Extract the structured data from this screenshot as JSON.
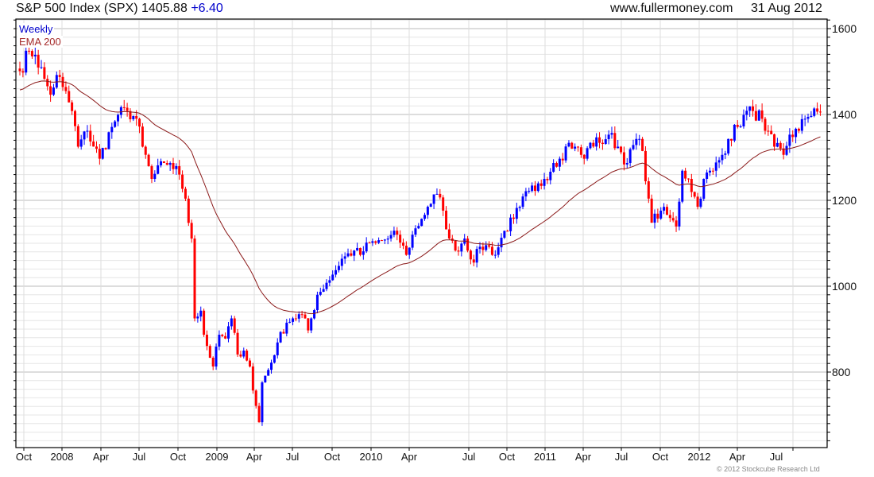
{
  "header": {
    "title": "S&P 500 Index (SPX) 1405.88",
    "change": "+6.40",
    "site": "www.fullermoney.com",
    "date": "31 Aug 2012"
  },
  "legend": {
    "frequency": "Weekly",
    "indicator": "EMA 200"
  },
  "copyright": "© 2012 Stockcube Research Ltd",
  "colors": {
    "up": "#0000ff",
    "down": "#ff0000",
    "ema": "#8b1a1a",
    "grid": "#dddddd"
  },
  "chart_data": {
    "type": "candlestick",
    "title": "S&P 500 Index (SPX)",
    "frequency": "weekly",
    "last_close": 1405.88,
    "ylim": [
      622,
      1622
    ],
    "y_ticks": [
      800,
      1000,
      1200,
      1400,
      1600
    ],
    "x_ticks": [
      "Oct",
      "2008",
      "Apr",
      "Jul",
      "Oct",
      "2009",
      "Apr",
      "Jul",
      "Oct",
      "2010",
      "Apr",
      "Jul",
      "Oct",
      "2011",
      "Apr",
      "Jul",
      "Oct",
      "2012",
      "Apr",
      "Jul"
    ],
    "ema_period_weeks": 40,
    "ema_start": 1455,
    "close_anchors_week_value": [
      [
        0,
        1501
      ],
      [
        3,
        1548
      ],
      [
        5,
        1539
      ],
      [
        8,
        1483
      ],
      [
        10,
        1446
      ],
      [
        12,
        1492
      ],
      [
        14,
        1464
      ],
      [
        17,
        1408
      ],
      [
        19,
        1325
      ],
      [
        22,
        1362
      ],
      [
        26,
        1297
      ],
      [
        30,
        1371
      ],
      [
        32,
        1399
      ],
      [
        35,
        1408
      ],
      [
        38,
        1390
      ],
      [
        40,
        1325
      ],
      [
        43,
        1250
      ],
      [
        47,
        1287
      ],
      [
        49,
        1287
      ],
      [
        52,
        1260
      ],
      [
        54,
        1204
      ],
      [
        56,
        1111
      ],
      [
        57,
        925
      ],
      [
        59,
        943
      ],
      [
        60,
        887
      ],
      [
        63,
        813
      ],
      [
        65,
        887
      ],
      [
        67,
        878
      ],
      [
        69,
        925
      ],
      [
        71,
        841
      ],
      [
        73,
        850
      ],
      [
        75,
        813
      ],
      [
        76,
        757
      ],
      [
        78,
        683
      ],
      [
        79,
        776
      ],
      [
        82,
        822
      ],
      [
        84,
        869
      ],
      [
        87,
        915
      ],
      [
        89,
        925
      ],
      [
        92,
        934
      ],
      [
        94,
        897
      ],
      [
        97,
        980
      ],
      [
        100,
        1008
      ],
      [
        102,
        1027
      ],
      [
        105,
        1064
      ],
      [
        109,
        1083
      ],
      [
        111,
        1073
      ],
      [
        114,
        1101
      ],
      [
        116,
        1101
      ],
      [
        120,
        1111
      ],
      [
        123,
        1120
      ],
      [
        126,
        1073
      ],
      [
        128,
        1120
      ],
      [
        131,
        1157
      ],
      [
        133,
        1185
      ],
      [
        136,
        1215
      ],
      [
        138,
        1176
      ],
      [
        140,
        1111
      ],
      [
        142,
        1083
      ],
      [
        145,
        1111
      ],
      [
        148,
        1055
      ],
      [
        150,
        1092
      ],
      [
        153,
        1092
      ],
      [
        155,
        1073
      ],
      [
        158,
        1129
      ],
      [
        161,
        1157
      ],
      [
        163,
        1185
      ],
      [
        166,
        1222
      ],
      [
        168,
        1222
      ],
      [
        171,
        1250
      ],
      [
        174,
        1287
      ],
      [
        176,
        1297
      ],
      [
        179,
        1334
      ],
      [
        181,
        1325
      ],
      [
        184,
        1297
      ],
      [
        186,
        1334
      ],
      [
        189,
        1334
      ],
      [
        192,
        1353
      ],
      [
        195,
        1325
      ],
      [
        198,
        1287
      ],
      [
        201,
        1343
      ],
      [
        203,
        1315
      ],
      [
        205,
        1204
      ],
      [
        206,
        1148
      ],
      [
        209,
        1176
      ],
      [
        211,
        1166
      ],
      [
        214,
        1139
      ],
      [
        216,
        1269
      ],
      [
        218,
        1250
      ],
      [
        221,
        1185
      ],
      [
        223,
        1250
      ],
      [
        226,
        1269
      ],
      [
        229,
        1306
      ],
      [
        231,
        1343
      ],
      [
        234,
        1371
      ],
      [
        236,
        1399
      ],
      [
        239,
        1408
      ],
      [
        242,
        1390
      ],
      [
        243,
        1362
      ],
      [
        246,
        1325
      ],
      [
        249,
        1306
      ],
      [
        251,
        1353
      ],
      [
        254,
        1362
      ],
      [
        256,
        1390
      ],
      [
        259,
        1414
      ],
      [
        261,
        1406
      ]
    ]
  }
}
